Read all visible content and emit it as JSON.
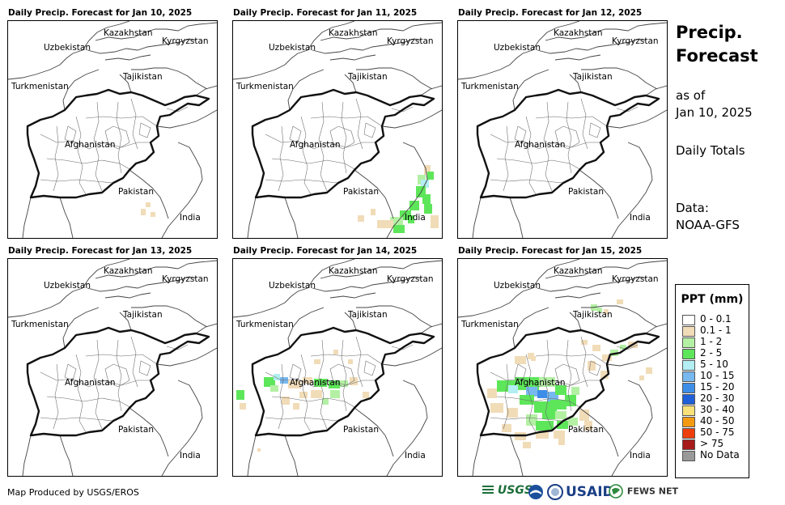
{
  "panels": [
    {
      "title": "Daily Precip. Forecast for Jan 10, 2025"
    },
    {
      "title": "Daily Precip. Forecast for Jan 11, 2025"
    },
    {
      "title": "Daily Precip. Forecast for Jan 12, 2025"
    },
    {
      "title": "Daily Precip. Forecast for Jan 13, 2025"
    },
    {
      "title": "Daily Precip. Forecast for Jan 14, 2025"
    },
    {
      "title": "Daily Precip. Forecast for Jan 15, 2025"
    }
  ],
  "map_labels": {
    "kazakhstan": "Kazakhstan",
    "kyrgyzstan": "Kyrgyzstan",
    "uzbekistan": "Uzbekistan",
    "tajikistan": "Tajikistan",
    "turkmenistan": "Turkmenistan",
    "afghanistan": "Afghanistan",
    "pakistan": "Pakistan",
    "india": "India"
  },
  "sidebar": {
    "title_line1": "Precip.",
    "title_line2": "Forecast",
    "asof_line1": "as of",
    "asof_line2": "Jan 10, 2025",
    "totals": "Daily Totals",
    "data_line1": "Data:",
    "data_line2": "NOAA-GFS"
  },
  "legend": {
    "title": "PPT (mm)",
    "items": [
      {
        "label": "0 - 0.1",
        "color": "#ffffff"
      },
      {
        "label": "0.1 - 1",
        "color": "#f1dcb8"
      },
      {
        "label": "1 - 2",
        "color": "#b4f0a4"
      },
      {
        "label": "2 - 5",
        "color": "#5ee65a"
      },
      {
        "label": "5 - 10",
        "color": "#b2eef2"
      },
      {
        "label": "10 - 15",
        "color": "#78b8f0"
      },
      {
        "label": "15 - 20",
        "color": "#3e8ee8"
      },
      {
        "label": "20 - 30",
        "color": "#1f5fd8"
      },
      {
        "label": "30 - 40",
        "color": "#f8e07a"
      },
      {
        "label": "40 - 50",
        "color": "#f49a12"
      },
      {
        "label": "50 - 75",
        "color": "#ee3e0c"
      },
      {
        "label": "> 75",
        "color": "#a81b1b"
      },
      {
        "label": "No Data",
        "color": "#999999"
      }
    ]
  },
  "footer": {
    "credit": "Map Produced by USGS/EROS"
  },
  "logos": {
    "usgs": "USGS",
    "usaid": "USAID",
    "fewsnet": "FEWS NET"
  }
}
